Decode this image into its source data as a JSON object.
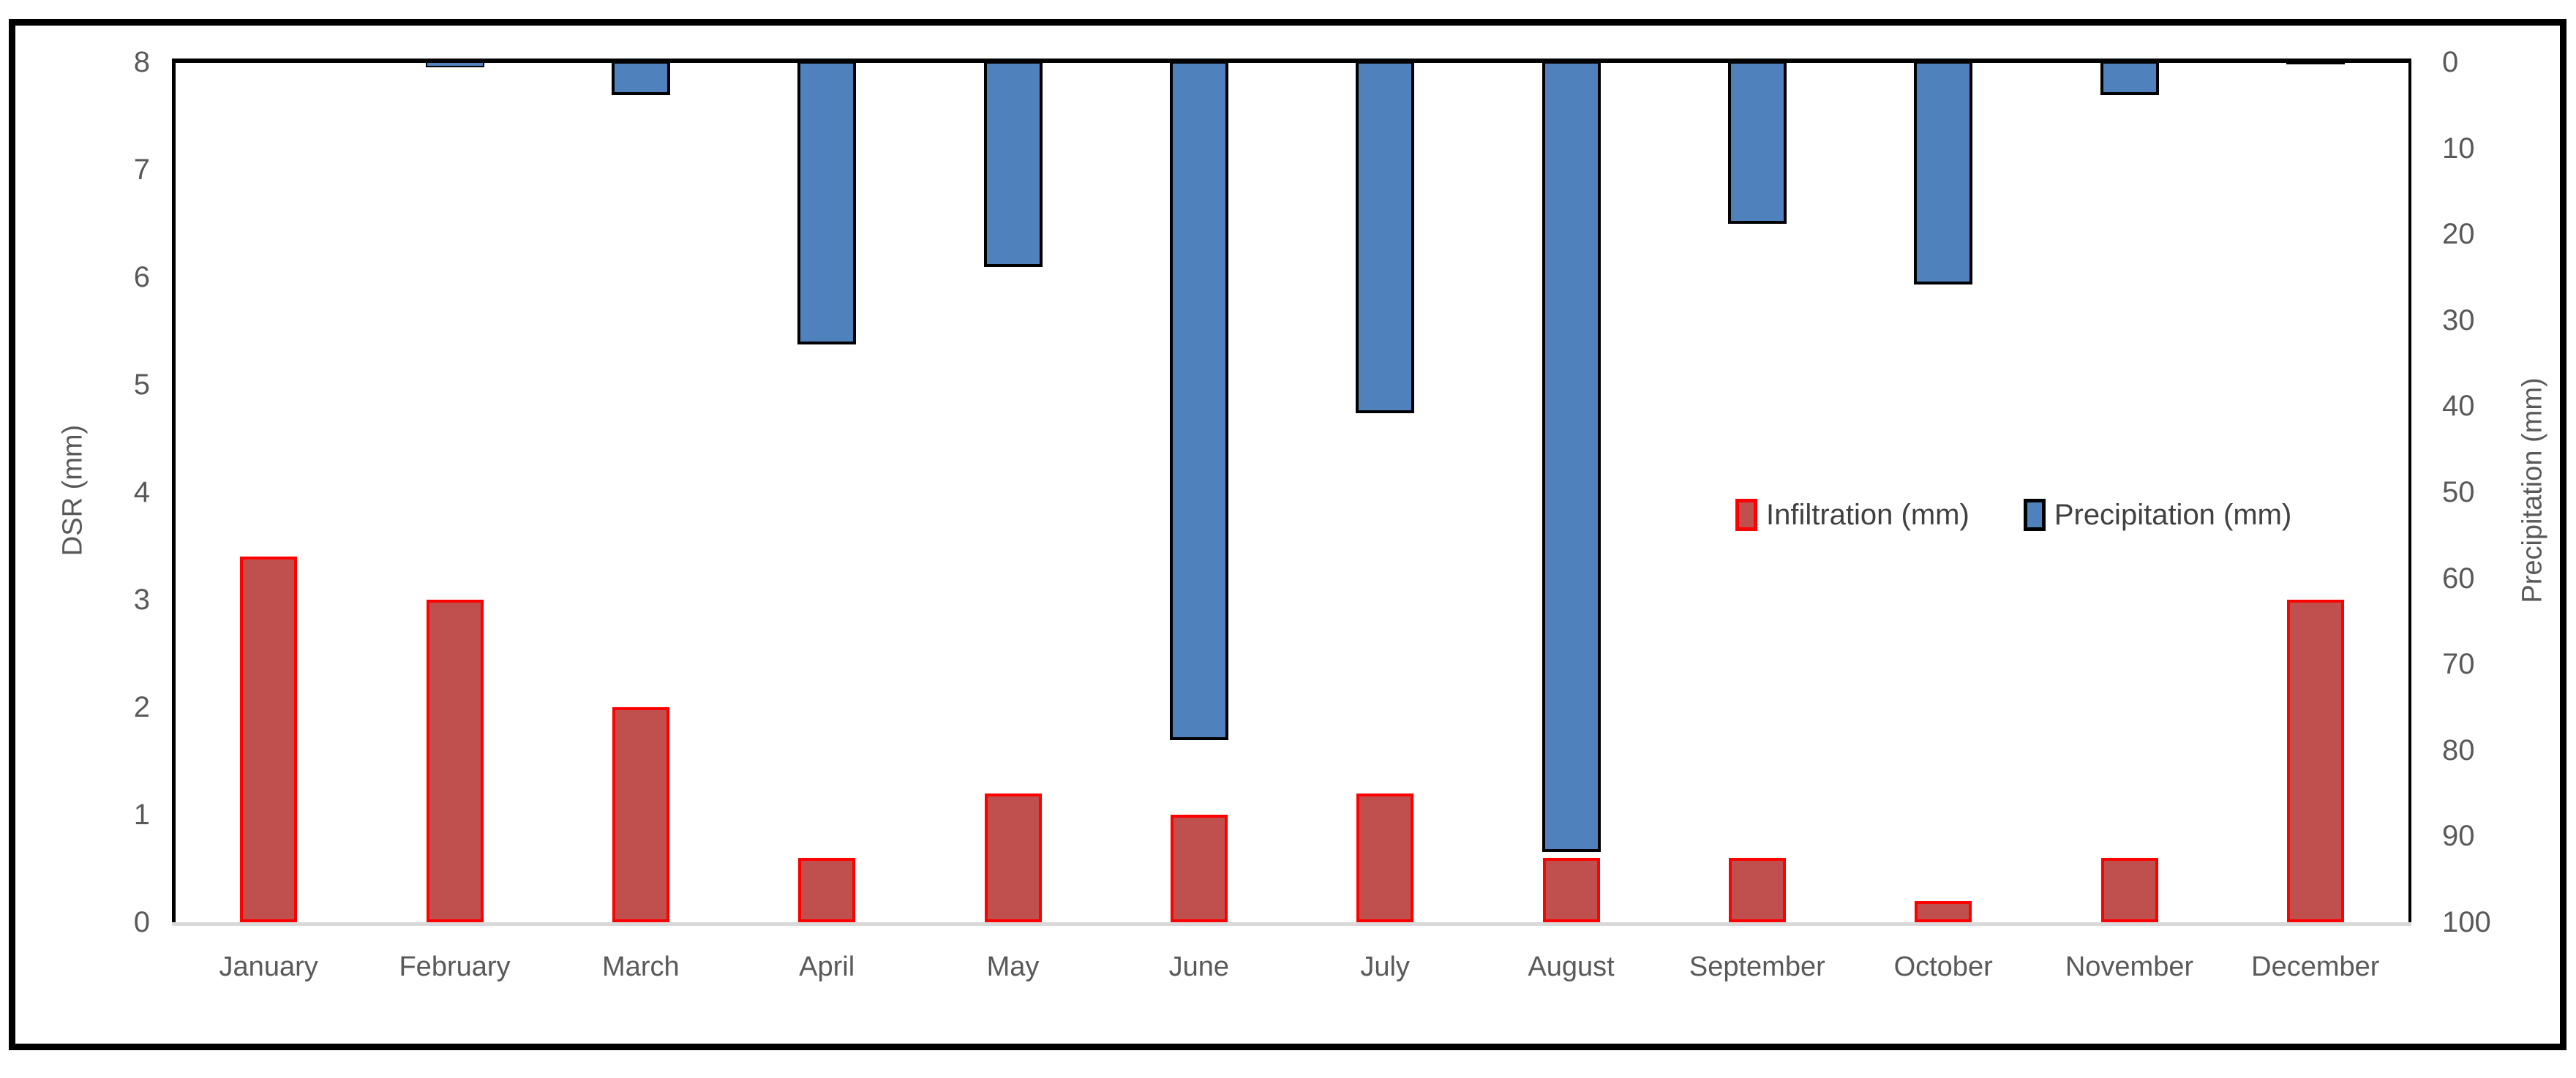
{
  "figure": {
    "background": "#FFFFFF",
    "frame_color": "#000000",
    "text_color": "#595959"
  },
  "chart_data": {
    "type": "bar",
    "title": "",
    "categories": [
      "January",
      "February",
      "March",
      "April",
      "May",
      "June",
      "July",
      "August",
      "September",
      "October",
      "November",
      "December"
    ],
    "series": [
      {
        "name": "Infiltration (mm)",
        "axis": "left",
        "direction": "up",
        "fill_color": "#C0504D",
        "border_color": "#FF0000",
        "values": [
          3.4,
          3.0,
          2.0,
          0.6,
          1.2,
          1.0,
          1.2,
          0.6,
          0.6,
          0.2,
          0.6,
          3.0
        ]
      },
      {
        "name": "Precipitation (mm)",
        "axis": "right",
        "direction": "down",
        "fill_color": "#4F81BD",
        "border_color": "#000000",
        "values": [
          0,
          0.8,
          4,
          33,
          24,
          79,
          41,
          92,
          19,
          26,
          4,
          0.4
        ]
      }
    ],
    "left_axis": {
      "label": "DSR (mm)",
      "min": 0,
      "max": 8,
      "step": 1,
      "ticks": [
        "0",
        "1",
        "2",
        "3",
        "4",
        "5",
        "6",
        "7",
        "8"
      ]
    },
    "right_axis": {
      "label": "Precipitation (mm)",
      "min": 0,
      "max": 100,
      "step": 10,
      "inverted": true,
      "ticks": [
        "0",
        "10",
        "20",
        "30",
        "40",
        "50",
        "60",
        "70",
        "80",
        "90",
        "100"
      ]
    },
    "legend": {
      "position": "center-right",
      "items": [
        "Infiltration (mm)",
        "Precipitation (mm)"
      ]
    },
    "grid": "off"
  }
}
